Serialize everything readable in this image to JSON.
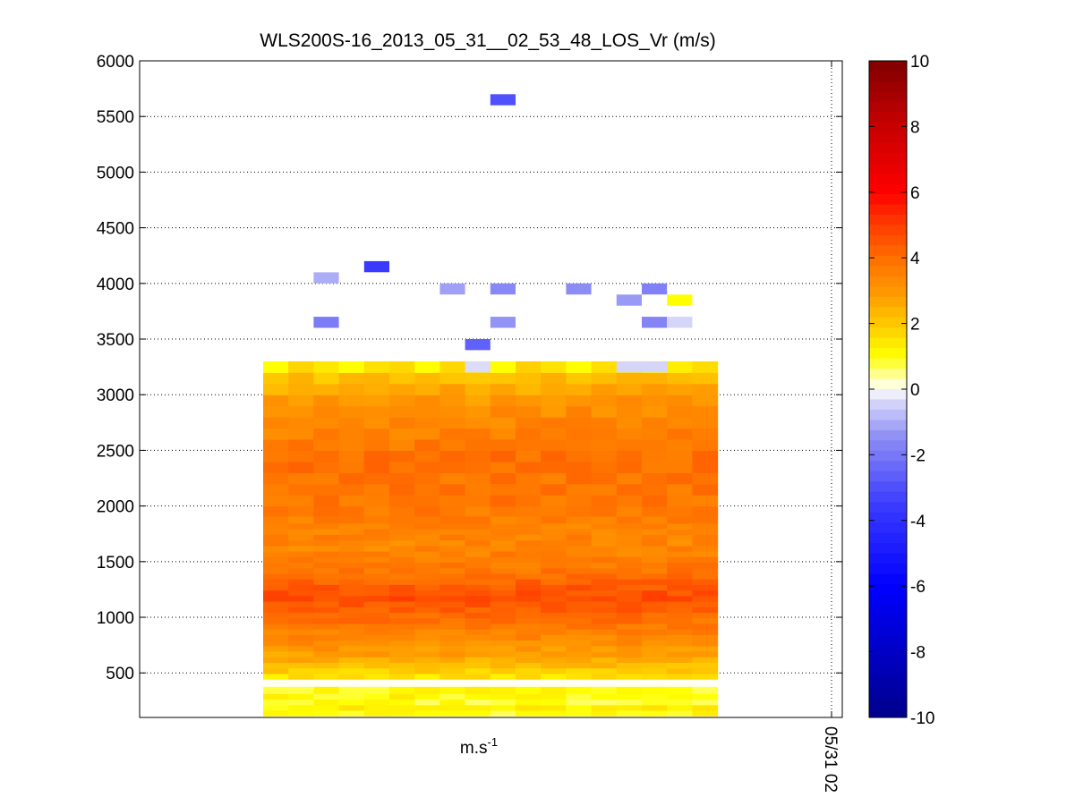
{
  "chart_data": {
    "type": "heatmap",
    "title": "WLS200S-16_2013_05_31__02_53_48_LOS_Vr (m/s)",
    "xlabel": "m.s",
    "xlabel_superscript": "-1",
    "ylabel": "",
    "ylim": [
      100,
      6000
    ],
    "yticks": [
      500,
      1000,
      1500,
      2000,
      2500,
      3000,
      3500,
      4000,
      4500,
      5000,
      5500,
      6000
    ],
    "xtick_label": "05/31 02",
    "grid": true,
    "colormap": "jet-like diverging (blue negative, white near zero, yellow-orange-red positive)",
    "colorbar": {
      "range": [
        -10,
        10
      ],
      "ticks": [
        -10,
        -8,
        -6,
        -4,
        -2,
        0,
        2,
        4,
        6,
        8,
        10
      ],
      "tick_labels": [
        "-10",
        "-8",
        "-6",
        "-4",
        "-2",
        "0",
        "2",
        "4",
        "6",
        "8",
        "10"
      ]
    },
    "profile_columns": 18,
    "range_gates_m": [
      140,
      190,
      240,
      290,
      340,
      420,
      470,
      520,
      570,
      620,
      670,
      720,
      770,
      820,
      870,
      920,
      970,
      1020,
      1070,
      1120,
      1170,
      1220,
      1270,
      1320,
      1370,
      1420,
      1470,
      1520,
      1570,
      1620,
      1670,
      1720,
      1770,
      1820,
      1870,
      1950,
      2050,
      2150,
      2250,
      2350,
      2450,
      2550,
      2650,
      2750,
      2850,
      2950,
      3050,
      3150,
      3250
    ],
    "velocity_profile_m_s": [
      1.0,
      1.2,
      0.9,
      1.1,
      1.0,
      0.7,
      1.5,
      1.9,
      2.2,
      2.5,
      2.8,
      3.0,
      3.2,
      3.4,
      3.5,
      3.7,
      3.9,
      4.1,
      4.3,
      4.5,
      4.7,
      4.6,
      4.4,
      4.2,
      4.0,
      3.8,
      3.7,
      3.6,
      3.5,
      3.4,
      3.4,
      3.5,
      3.4,
      3.5,
      3.6,
      3.7,
      3.8,
      3.8,
      3.8,
      3.9,
      3.9,
      3.7,
      3.5,
      3.4,
      3.2,
      3.0,
      2.6,
      2.2,
      1.5
    ],
    "sparse_cells": [
      {
        "col": 9,
        "altitude_m": 5650,
        "velocity_m_s": -3.0
      },
      {
        "col": 4,
        "altitude_m": 4150,
        "velocity_m_s": -3.6
      },
      {
        "col": 2,
        "altitude_m": 4050,
        "velocity_m_s": -1.0
      },
      {
        "col": 7,
        "altitude_m": 3950,
        "velocity_m_s": -1.2
      },
      {
        "col": 9,
        "altitude_m": 3950,
        "velocity_m_s": -1.6
      },
      {
        "col": 12,
        "altitude_m": 3950,
        "velocity_m_s": -1.5
      },
      {
        "col": 14,
        "altitude_m": 3850,
        "velocity_m_s": -1.3
      },
      {
        "col": 15,
        "altitude_m": 3950,
        "velocity_m_s": -1.8
      },
      {
        "col": 16,
        "altitude_m": 3850,
        "velocity_m_s": 1.0
      },
      {
        "col": 2,
        "altitude_m": 3650,
        "velocity_m_s": -1.9
      },
      {
        "col": 9,
        "altitude_m": 3650,
        "velocity_m_s": -1.4
      },
      {
        "col": 15,
        "altitude_m": 3650,
        "velocity_m_s": -1.7
      },
      {
        "col": 16,
        "altitude_m": 3650,
        "velocity_m_s": -0.4
      },
      {
        "col": 8,
        "altitude_m": 3450,
        "velocity_m_s": -2.6
      },
      {
        "col": 8,
        "altitude_m": 3250,
        "velocity_m_s": -0.3
      },
      {
        "col": 14,
        "altitude_m": 3250,
        "velocity_m_s": -0.4
      },
      {
        "col": 15,
        "altitude_m": 3250,
        "velocity_m_s": -0.4
      }
    ]
  }
}
